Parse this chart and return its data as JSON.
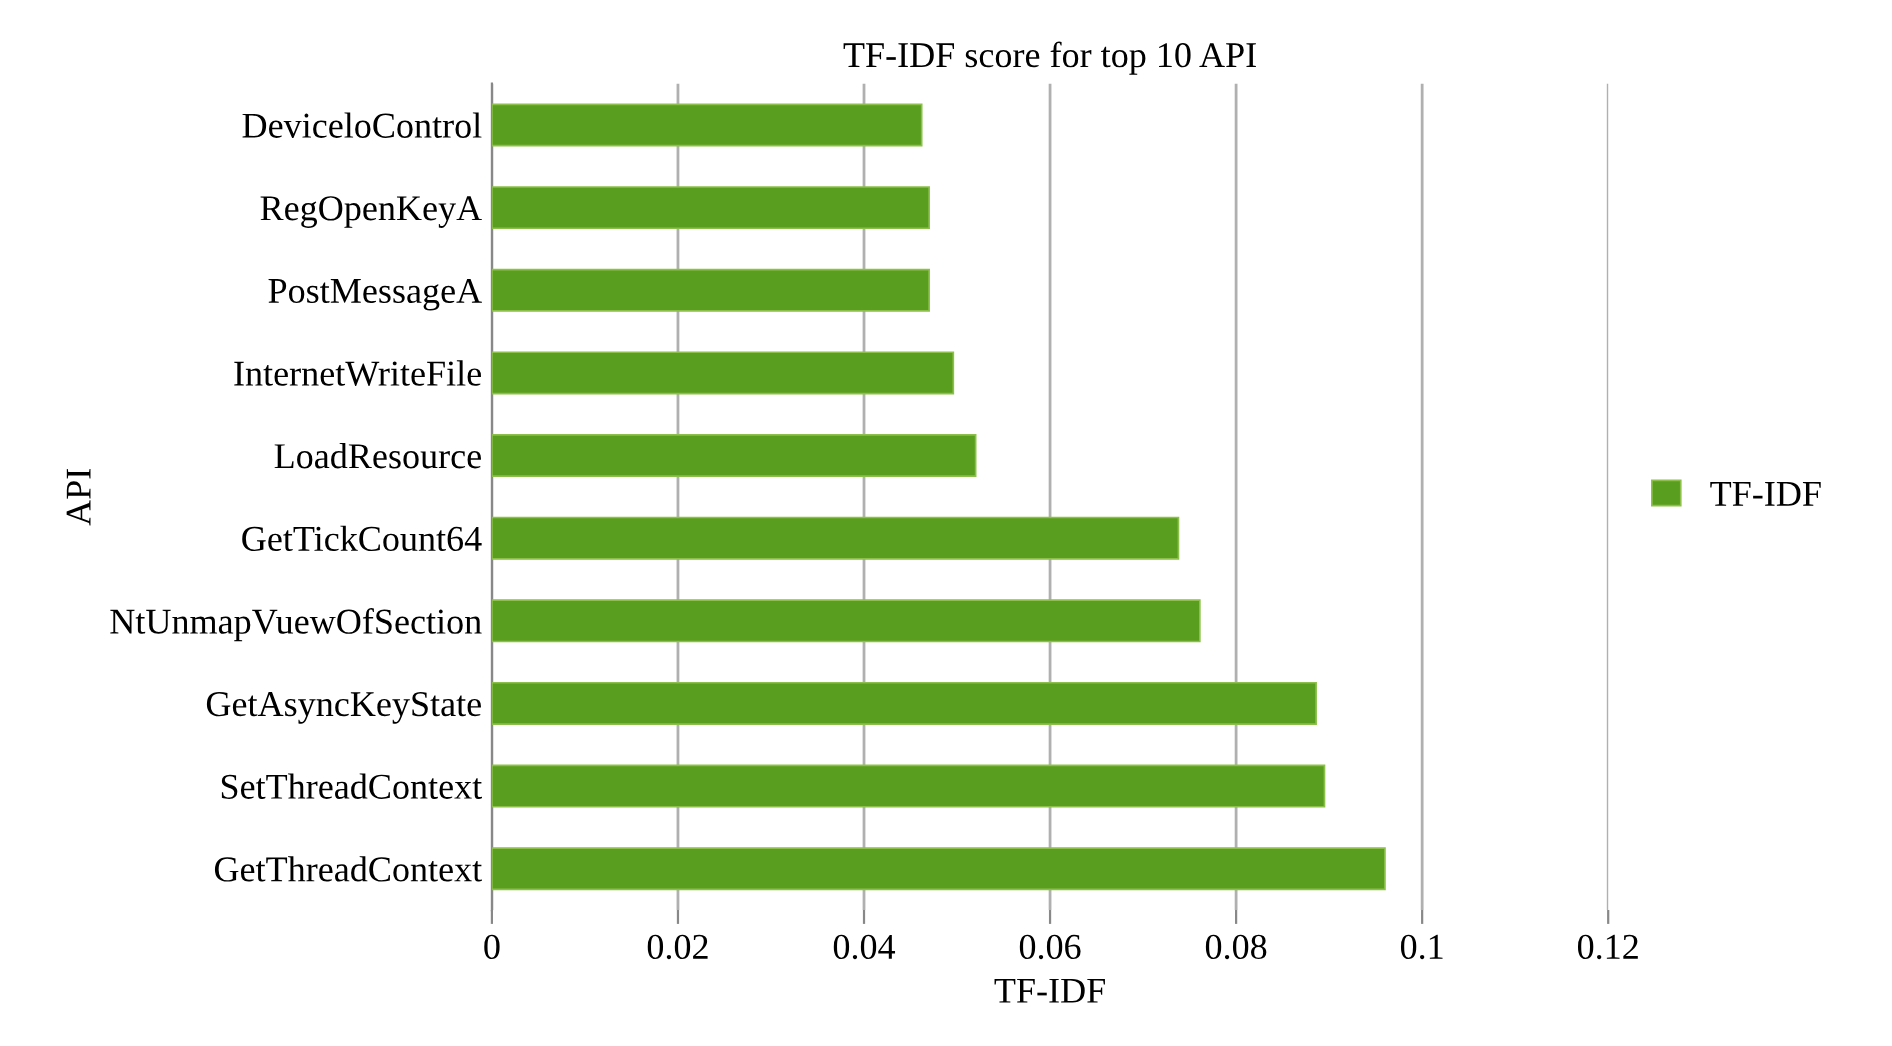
{
  "chart_data": {
    "type": "bar",
    "orientation": "horizontal",
    "title": "TF-IDF score for top 10 API",
    "xlabel": "TF-IDF",
    "ylabel": "API",
    "categories": [
      "DeviceloControl",
      "RegOpenKeyA",
      "PostMessageA",
      "InternetWriteFile",
      "LoadResource",
      "GetTickCount64",
      "NtUnmapVuewOfSection",
      "GetAsyncKeyState",
      "SetThreadContext",
      "GetThreadContext"
    ],
    "series": [
      {
        "name": "TF-IDF",
        "color": "#5a9e1f",
        "values": [
          0.0462,
          0.047,
          0.047,
          0.0496,
          0.052,
          0.0738,
          0.0761,
          0.0886,
          0.0895,
          0.096
        ]
      }
    ],
    "xlim": [
      0,
      0.12
    ],
    "xticks": [
      {
        "value": 0,
        "label": "0"
      },
      0.02,
      0.04,
      0.06,
      0.08,
      0.1,
      0.12
    ],
    "grid": "x",
    "legend": "right"
  }
}
